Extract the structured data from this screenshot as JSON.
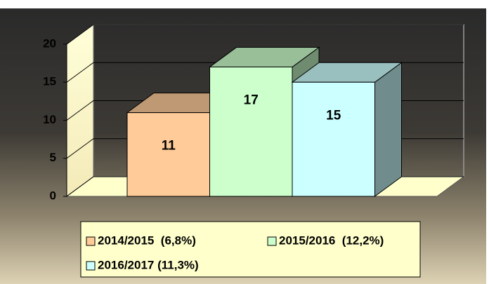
{
  "chart_data": {
    "type": "bar3d",
    "series": [
      {
        "name": "2014/2015  (6,8%)",
        "color": "#ffcc99",
        "values": [
          11
        ]
      },
      {
        "name": "2015/2016  (12,2%)",
        "color": "#ccffcc",
        "values": [
          17
        ]
      },
      {
        "name": "2016/2017 (11,3%)",
        "color": "#ccffff",
        "values": [
          15
        ]
      }
    ],
    "ylim": [
      0,
      20
    ],
    "yticks": [
      0,
      5,
      10,
      15,
      20
    ],
    "grid": true,
    "legend": "bottom"
  }
}
